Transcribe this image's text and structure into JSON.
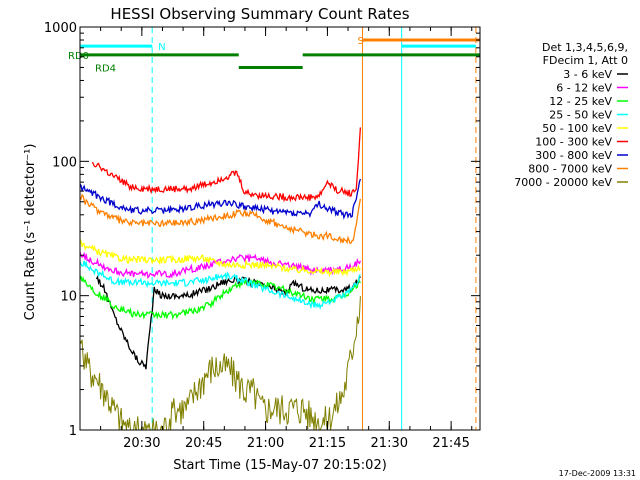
{
  "chart_data": {
    "type": "line",
    "title": "HESSI Observing Summary Count Rates",
    "xlabel": "Start Time (15-May-07 20:15:02)",
    "ylabel": "Count Rate (s⁻¹ detector⁻¹)",
    "ylog": true,
    "ylim": [
      1,
      1000
    ],
    "xlim": [
      0,
      97
    ],
    "x_unit": "minutes after 20:15:02",
    "yticks": [
      {
        "v": 1,
        "label": "1"
      },
      {
        "v": 10,
        "label": "10"
      },
      {
        "v": 100,
        "label": "100"
      },
      {
        "v": 1000,
        "label": "1000"
      }
    ],
    "xticks": [
      {
        "v": 15,
        "label": "20:30"
      },
      {
        "v": 30,
        "label": "20:45"
      },
      {
        "v": 45,
        "label": "21:00"
      },
      {
        "v": 60,
        "label": "21:15"
      },
      {
        "v": 75,
        "label": "21:30"
      },
      {
        "v": 90,
        "label": "21:45"
      }
    ],
    "legend_header": [
      "Det 1,3,4,5,6,9,",
      "FDecim 1, Att 0"
    ],
    "legend_position": "right",
    "series": [
      {
        "name": "3 - 6 keV",
        "color": "#000000",
        "x": [
          4,
          6,
          8,
          10,
          12,
          14,
          16,
          18,
          20,
          22,
          24,
          26,
          28,
          30,
          32,
          34,
          36,
          38,
          40,
          42,
          44,
          46,
          48,
          50,
          52,
          54,
          56,
          58,
          60,
          62,
          64,
          66,
          68
        ],
        "values": [
          14,
          11,
          7.5,
          5.5,
          4.2,
          3.3,
          3.0,
          11,
          10,
          10,
          10,
          10,
          10.5,
          11,
          11.5,
          12.5,
          13,
          13,
          13,
          12.5,
          12,
          11.5,
          11,
          10.5,
          12.5,
          11.5,
          11,
          11,
          11,
          11,
          11,
          11.5,
          13.5
        ]
      },
      {
        "name": "6 - 12 keV",
        "color": "#ff00ff",
        "x": [
          0,
          2,
          4,
          6,
          8,
          10,
          12,
          14,
          16,
          18,
          20,
          22,
          24,
          26,
          28,
          30,
          32,
          34,
          36,
          38,
          40,
          42,
          44,
          46,
          48,
          50,
          52,
          54,
          56,
          58,
          60,
          62,
          64,
          66,
          68
        ],
        "values": [
          21,
          19,
          17.5,
          16.5,
          15.5,
          15,
          14.5,
          14.5,
          14.5,
          14.5,
          14.5,
          14.5,
          15,
          15.5,
          16,
          16.5,
          17,
          18,
          18.5,
          19,
          19,
          19,
          18.5,
          18,
          17.5,
          17,
          16.5,
          16,
          15.5,
          15.5,
          15.5,
          15.5,
          16,
          16.5,
          18
        ]
      },
      {
        "name": "12 - 25 keV",
        "color": "#00ff00",
        "x": [
          0,
          2,
          4,
          6,
          8,
          10,
          12,
          14,
          16,
          18,
          20,
          22,
          24,
          26,
          28,
          30,
          32,
          34,
          36,
          38,
          40,
          42,
          44,
          46,
          48,
          50,
          52,
          54,
          56,
          58,
          60,
          62,
          64,
          66,
          68
        ],
        "values": [
          14,
          12,
          10.5,
          9.5,
          8.5,
          8,
          7.5,
          7.2,
          7.2,
          7.2,
          7.2,
          7.2,
          7.3,
          7.5,
          7.8,
          8.2,
          8.8,
          10,
          11,
          12,
          12.5,
          12.5,
          12.3,
          12,
          11.5,
          11,
          10.5,
          10,
          9.5,
          9.5,
          9.5,
          9.5,
          10,
          11,
          13
        ]
      },
      {
        "name": "25 - 50 keV",
        "color": "#00ffff",
        "x": [
          0,
          2,
          4,
          6,
          8,
          10,
          12,
          14,
          16,
          18,
          20,
          22,
          24,
          26,
          28,
          30,
          32,
          34,
          36,
          38,
          40,
          42,
          44,
          46,
          48,
          50,
          52,
          54,
          56,
          58,
          60,
          62,
          64,
          66,
          68
        ],
        "values": [
          18,
          16.5,
          15,
          14,
          13,
          12.5,
          12.5,
          12.5,
          12.5,
          12.5,
          12.5,
          12.5,
          12.5,
          12.5,
          13,
          13,
          13.5,
          14,
          14,
          13.5,
          13,
          12,
          11.5,
          11,
          10.5,
          10,
          9.5,
          9,
          8.5,
          8.5,
          9,
          9.5,
          10,
          11,
          14
        ]
      },
      {
        "name": "50 - 100 keV",
        "color": "#ffff00",
        "x": [
          0,
          2,
          4,
          6,
          8,
          10,
          12,
          14,
          16,
          18,
          20,
          22,
          24,
          26,
          28,
          30,
          32,
          34,
          36,
          38,
          40,
          42,
          44,
          46,
          48,
          50,
          52,
          54,
          56,
          58,
          60,
          62,
          64,
          66,
          68
        ],
        "values": [
          25,
          23,
          21.5,
          20.5,
          19.5,
          19,
          18.5,
          18.5,
          18.5,
          18.5,
          18.5,
          18.5,
          18.5,
          19,
          19,
          19,
          18,
          17.5,
          17,
          17,
          17,
          17,
          17,
          16.5,
          16.5,
          16,
          15.5,
          15.5,
          15.5,
          15,
          15,
          15,
          15,
          15.5,
          16.5
        ]
      },
      {
        "name": "100 - 300 keV",
        "color": "#ff0000",
        "x": [
          3,
          4,
          6,
          8,
          10,
          12,
          14,
          16,
          18,
          20,
          22,
          24,
          26,
          28,
          30,
          32,
          34,
          36,
          38,
          40,
          42,
          44,
          46,
          48,
          50,
          52,
          54,
          56,
          58,
          60,
          62,
          64,
          66,
          67,
          68
        ],
        "values": [
          100,
          95,
          85,
          77,
          71,
          66,
          63,
          62,
          62,
          62,
          62,
          62,
          63,
          65,
          67,
          70,
          74,
          78,
          82,
          58,
          57,
          56,
          55,
          55,
          54,
          54,
          54,
          54,
          55,
          70,
          62,
          59,
          58,
          62,
          180
        ]
      },
      {
        "name": "300 - 800 keV",
        "color": "#0000cc",
        "x": [
          0,
          2,
          4,
          6,
          8,
          10,
          12,
          14,
          16,
          18,
          20,
          22,
          24,
          26,
          28,
          30,
          32,
          34,
          36,
          38,
          40,
          42,
          44,
          46,
          48,
          50,
          52,
          54,
          56,
          58,
          60,
          62,
          64,
          66,
          68
        ],
        "values": [
          65,
          60,
          56,
          52,
          48,
          46,
          44,
          43,
          43,
          43,
          43,
          43,
          44,
          45,
          46,
          47,
          48,
          49,
          50,
          48,
          46,
          45,
          44,
          43,
          42,
          42,
          41,
          41,
          41,
          48,
          44,
          42,
          40,
          40,
          75
        ]
      },
      {
        "name": "800 - 7000 keV",
        "color": "#ff8000",
        "x": [
          0,
          2,
          4,
          6,
          8,
          10,
          12,
          14,
          16,
          18,
          20,
          22,
          24,
          26,
          28,
          30,
          32,
          34,
          36,
          38,
          40,
          42,
          44,
          46,
          48,
          50,
          52,
          54,
          56,
          58,
          60,
          62,
          64,
          66,
          68
        ],
        "values": [
          55,
          48,
          44,
          41,
          38,
          36,
          35,
          34.5,
          34.5,
          34.5,
          34.5,
          35,
          35,
          35.5,
          36,
          37,
          38,
          39,
          40,
          41,
          41,
          40,
          38,
          36,
          34,
          32,
          31,
          30,
          29,
          28,
          28,
          27,
          26,
          25,
          50
        ]
      },
      {
        "name": "7000 - 20000 keV",
        "color": "#808000",
        "x": [
          0,
          2,
          4,
          6,
          8,
          10,
          12,
          14,
          16,
          18,
          20,
          22,
          24,
          26,
          28,
          30,
          32,
          34,
          36,
          38,
          40,
          42,
          44,
          46,
          48,
          50,
          52,
          54,
          56,
          58,
          60,
          62,
          64,
          66,
          68
        ],
        "values": [
          4,
          3,
          2.5,
          2,
          1.5,
          1.2,
          1,
          1,
          1,
          1,
          1,
          1.3,
          1.5,
          1.5,
          2,
          2.5,
          3,
          3,
          3,
          2.5,
          2,
          2,
          1.5,
          1.5,
          1.5,
          1.5,
          1.5,
          1.5,
          1.3,
          1.2,
          1.2,
          1.5,
          2,
          4,
          10
        ]
      }
    ],
    "states": [
      {
        "name": "RD0",
        "color": "#008000",
        "level": 620,
        "segments": [
          [
            0,
            38.5
          ],
          [
            54,
            97
          ]
        ]
      },
      {
        "name": "RD4",
        "color": "#008000",
        "level": 500,
        "segments": [
          [
            38.5,
            54
          ]
        ]
      },
      {
        "name": "N",
        "color": "#00ffff",
        "level": 720,
        "segments": [
          [
            0,
            17.5
          ],
          [
            78,
            96
          ]
        ]
      },
      {
        "name": "S",
        "color": "#ff8000",
        "level": 800,
        "segments": [
          [
            68.5,
            97
          ]
        ]
      }
    ],
    "markers": [
      {
        "x": 17.5,
        "color": "#00ffff",
        "style": "dashed"
      },
      {
        "x": 68.5,
        "color": "#ff8000",
        "style": "solid"
      },
      {
        "x": 78,
        "color": "#00ffff",
        "style": "solid"
      },
      {
        "x": 96,
        "color": "#ff8000",
        "style": "dashed"
      }
    ],
    "timestamp": "17-Dec-2009 13:31"
  }
}
